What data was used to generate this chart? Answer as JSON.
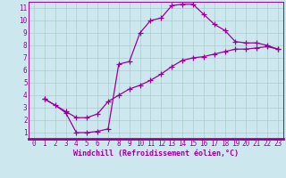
{
  "xlabel": "Windchill (Refroidissement éolien,°C)",
  "bg_color": "#cce8ee",
  "grid_color": "#aacccc",
  "line_color": "#990099",
  "xlim": [
    -0.5,
    23.5
  ],
  "ylim": [
    0.5,
    11.5
  ],
  "xticks": [
    0,
    1,
    2,
    3,
    4,
    5,
    6,
    7,
    8,
    9,
    10,
    11,
    12,
    13,
    14,
    15,
    16,
    17,
    18,
    19,
    20,
    21,
    22,
    23
  ],
  "yticks": [
    1,
    2,
    3,
    4,
    5,
    6,
    7,
    8,
    9,
    10,
    11
  ],
  "line1_x": [
    1,
    2,
    3,
    4,
    5,
    6,
    7,
    8,
    9,
    10,
    11,
    12,
    13,
    14,
    15,
    16,
    17,
    18,
    19,
    20,
    21,
    22,
    23
  ],
  "line1_y": [
    3.7,
    3.2,
    2.6,
    1.0,
    1.0,
    1.1,
    1.3,
    6.5,
    6.7,
    9.0,
    10.0,
    10.2,
    11.2,
    11.3,
    11.3,
    10.5,
    9.7,
    9.2,
    8.3,
    8.2,
    8.2,
    8.0,
    7.7
  ],
  "line2_x": [
    1,
    3,
    4,
    5,
    6,
    7,
    8,
    9,
    10,
    11,
    12,
    13,
    14,
    15,
    16,
    17,
    18,
    19,
    20,
    21,
    22,
    23
  ],
  "line2_y": [
    3.7,
    2.7,
    2.2,
    2.2,
    2.5,
    3.5,
    4.0,
    4.5,
    4.8,
    5.2,
    5.7,
    6.3,
    6.8,
    7.0,
    7.1,
    7.3,
    7.5,
    7.7,
    7.7,
    7.8,
    7.9,
    7.7
  ],
  "marker": "+",
  "markersize": 4,
  "linewidth": 0.9,
  "tick_fontsize": 5.5,
  "label_fontsize": 6.0
}
